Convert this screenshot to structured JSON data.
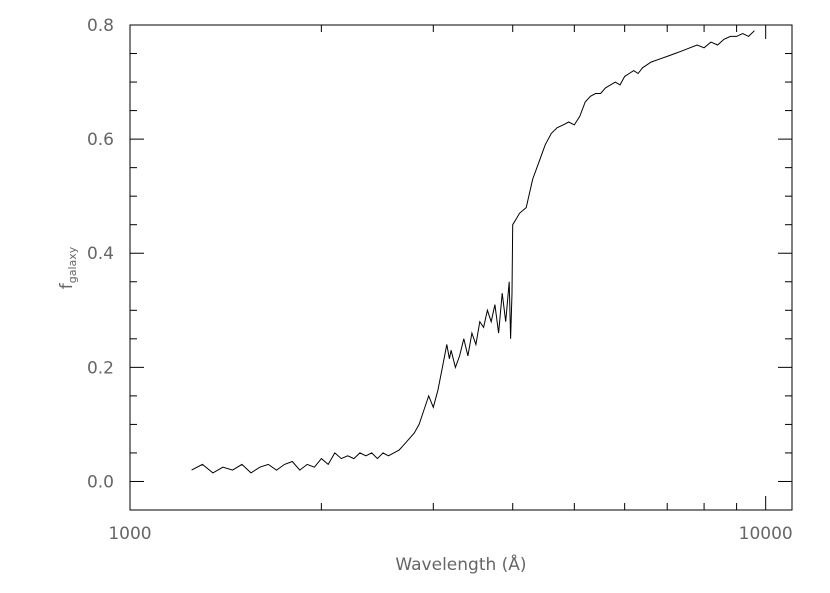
{
  "chart_data": {
    "type": "line",
    "xlabel": "Wavelength (Å)",
    "ylabel": "f",
    "ylabel_subscript": "galaxy",
    "x_scale": "log",
    "xlim": [
      1000,
      11000
    ],
    "ylim": [
      -0.05,
      0.8
    ],
    "x_tick_labels": [
      "1000",
      "10000"
    ],
    "x_tick_values": [
      1000,
      10000
    ],
    "y_tick_labels": [
      "0.0",
      "0.2",
      "0.4",
      "0.6",
      "0.8"
    ],
    "y_tick_values": [
      0.0,
      0.2,
      0.4,
      0.6,
      0.8
    ],
    "grid": false,
    "legend": "none",
    "line_color": "#000000",
    "series": [
      {
        "x": [
          1250,
          1300,
          1350,
          1400,
          1450,
          1500,
          1550,
          1600,
          1650,
          1700,
          1750,
          1800,
          1850,
          1900,
          1950,
          2000,
          2050,
          2100,
          2150,
          2200,
          2250,
          2300,
          2350,
          2400,
          2450,
          2500,
          2550,
          2600,
          2650,
          2700,
          2750,
          2800,
          2850,
          2900,
          2950,
          3000,
          3050,
          3100,
          3150,
          3180,
          3200,
          3250,
          3300,
          3350,
          3400,
          3450,
          3500,
          3550,
          3600,
          3650,
          3700,
          3750,
          3800,
          3850,
          3900,
          3950,
          3970,
          3990,
          4000,
          4050,
          4100,
          4200,
          4300,
          4400,
          4500,
          4600,
          4700,
          4800,
          4900,
          5000,
          5100,
          5200,
          5300,
          5400,
          5500,
          5600,
          5700,
          5800,
          5900,
          6000,
          6100,
          6200,
          6300,
          6400,
          6500,
          6600,
          6800,
          7000,
          7200,
          7400,
          7600,
          7800,
          8000,
          8200,
          8400,
          8600,
          8800,
          9000,
          9200,
          9400,
          9600
        ],
        "y": [
          0.02,
          0.03,
          0.015,
          0.025,
          0.02,
          0.03,
          0.015,
          0.025,
          0.03,
          0.02,
          0.03,
          0.035,
          0.02,
          0.03,
          0.025,
          0.04,
          0.03,
          0.05,
          0.04,
          0.045,
          0.04,
          0.05,
          0.045,
          0.05,
          0.04,
          0.05,
          0.045,
          0.05,
          0.055,
          0.065,
          0.075,
          0.085,
          0.1,
          0.125,
          0.15,
          0.13,
          0.16,
          0.2,
          0.24,
          0.215,
          0.23,
          0.2,
          0.22,
          0.25,
          0.22,
          0.26,
          0.24,
          0.28,
          0.27,
          0.3,
          0.28,
          0.31,
          0.26,
          0.33,
          0.28,
          0.35,
          0.25,
          0.33,
          0.45,
          0.46,
          0.47,
          0.48,
          0.53,
          0.56,
          0.59,
          0.61,
          0.62,
          0.625,
          0.63,
          0.625,
          0.64,
          0.665,
          0.675,
          0.68,
          0.68,
          0.69,
          0.695,
          0.7,
          0.695,
          0.71,
          0.715,
          0.72,
          0.715,
          0.725,
          0.73,
          0.735,
          0.74,
          0.745,
          0.75,
          0.755,
          0.76,
          0.765,
          0.76,
          0.77,
          0.765,
          0.775,
          0.78,
          0.78,
          0.785,
          0.78,
          0.79
        ]
      }
    ]
  }
}
